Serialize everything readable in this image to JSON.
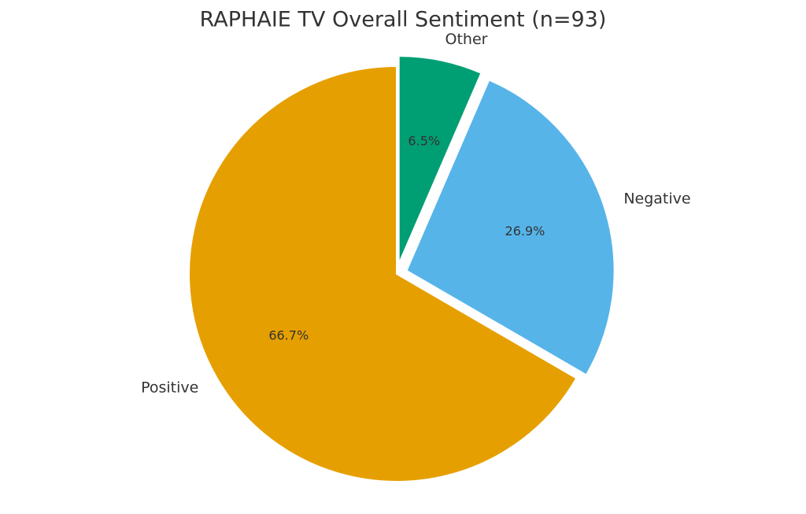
{
  "chart_data": {
    "type": "pie",
    "title": "RAPHAIE TV Overall Sentiment (n=93)",
    "categories": [
      "Other",
      "Negative",
      "Positive"
    ],
    "values": [
      6.5,
      26.9,
      66.7
    ],
    "value_labels": [
      "6.5%",
      "26.9%",
      "66.7%"
    ],
    "colors": [
      "#009E73",
      "#56B4E9",
      "#E69F00"
    ],
    "explode": [
      0.05,
      0.05,
      0
    ],
    "start_angle": 90,
    "direction": "clockwise"
  }
}
